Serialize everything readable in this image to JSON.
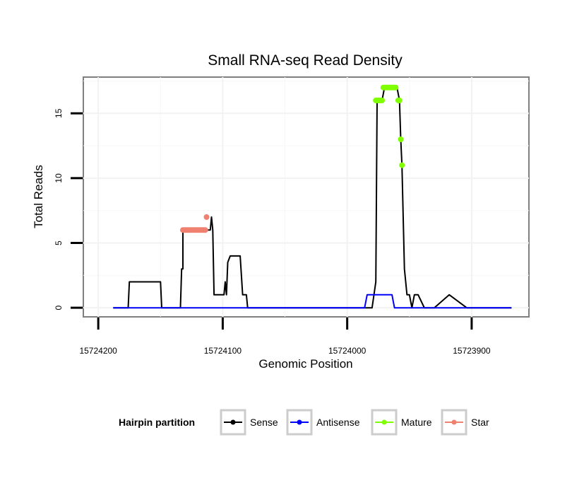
{
  "chart_data": {
    "type": "line",
    "title": "Small RNA-seq Read Density",
    "xlabel": "Genomic Position",
    "ylabel": "Total Reads",
    "xlim": [
      15724212,
      15723854
    ],
    "ylim": [
      -0.7,
      17.8
    ],
    "x_ticks": [
      15724200,
      15724100,
      15724000,
      15723900
    ],
    "x_tick_labels": [
      "15724200",
      "15724100",
      "15724000",
      "15723900"
    ],
    "y_ticks": [
      0,
      5,
      10,
      15
    ],
    "y_tick_labels": [
      "0",
      "5",
      "10",
      "15"
    ],
    "grid": true,
    "legend": {
      "title": "Hairpin partition",
      "position": "bottom",
      "entries": [
        "Sense",
        "Antisense",
        "Mature",
        "Star"
      ]
    },
    "series": [
      {
        "name": "Sense",
        "color": "#000000",
        "style": "line",
        "x": [
          15724188,
          15724176,
          15724175,
          15724163,
          15724150,
          15724149,
          15724148,
          15724148,
          15724147,
          15724147,
          15724146,
          15724143,
          15724137,
          15724134,
          15724133,
          15724132,
          15724132,
          15724131,
          15724131,
          15724130,
          15724124,
          15724114,
          15724110,
          15724109,
          15724108,
          15724107,
          15724106,
          15724106,
          15724105,
          15724104,
          15724103,
          15724102,
          15724101,
          15724100,
          15724099,
          15724098,
          15724097,
          15724096,
          15724094,
          15724092,
          15724088,
          15724086,
          15724084,
          15724082,
          15724081,
          15724080,
          15724070,
          15724060,
          15724050,
          15724040,
          15724030,
          15724020,
          15724010,
          15724000,
          15723990,
          15723980,
          15723977,
          15723976,
          15723974,
          15723972,
          15723970,
          15723968,
          15723966,
          15723964,
          15723962,
          15723960,
          15723958,
          15723957,
          15723956,
          15723954,
          15723952,
          15723950,
          15723948,
          15723946,
          15723943,
          15723938,
          15723930,
          15723918,
          15723904,
          15723886,
          15723868
        ],
        "y": [
          0,
          0,
          2,
          2,
          2,
          0,
          0,
          0,
          0,
          0,
          0,
          0,
          0,
          0,
          3,
          3,
          6,
          6,
          6,
          6,
          6,
          6,
          6,
          7,
          6,
          1,
          1,
          1,
          1,
          1,
          1,
          1,
          1,
          1,
          1,
          2,
          1,
          3.5,
          4,
          4,
          4,
          4,
          1,
          1,
          1,
          0,
          0,
          0,
          0,
          0,
          0,
          0,
          0,
          0,
          0,
          0,
          2,
          16,
          16,
          16,
          17,
          17,
          17,
          17,
          17,
          17,
          16,
          13,
          11,
          3,
          1,
          1,
          0,
          1,
          1,
          0,
          0,
          1,
          0,
          0,
          0
        ],
        "y_note": "Sense track values read from the figure at the listed positions"
      },
      {
        "name": "Antisense",
        "color": "#0000ff",
        "style": "line",
        "x": [
          15724188,
          15724100,
          15724000,
          15723986,
          15723984,
          15723964,
          15723962,
          15723940,
          15723900,
          15723868
        ],
        "y": [
          0,
          0,
          0,
          0,
          1,
          1,
          0,
          0,
          0,
          0
        ]
      },
      {
        "name": "Mature",
        "color": "#7fff00",
        "style": "points",
        "x": [
          15723977,
          15723976,
          15723975,
          15723974,
          15723973,
          15723972,
          15723971,
          15723970,
          15723969,
          15723968,
          15723967,
          15723966,
          15723965,
          15723964,
          15723963,
          15723962,
          15723961,
          15723959,
          15723958,
          15723957,
          15723956
        ],
        "y": [
          16,
          16,
          16,
          16,
          16,
          16,
          17,
          17,
          17,
          17,
          17,
          17,
          17,
          17,
          17,
          17,
          17,
          16,
          16,
          13,
          11
        ]
      },
      {
        "name": "Star",
        "color": "#f08070",
        "style": "points",
        "x": [
          15724132,
          15724131,
          15724130,
          15724129,
          15724128,
          15724127,
          15724126,
          15724125,
          15724124,
          15724123,
          15724122,
          15724121,
          15724120,
          15724119,
          15724118,
          15724117,
          15724116,
          15724115,
          15724114,
          15724113
        ],
        "y": [
          6,
          6,
          6,
          6,
          6,
          6,
          6,
          6,
          6,
          6,
          6,
          6,
          6,
          6,
          6,
          6,
          6,
          6,
          6,
          7
        ]
      }
    ]
  }
}
